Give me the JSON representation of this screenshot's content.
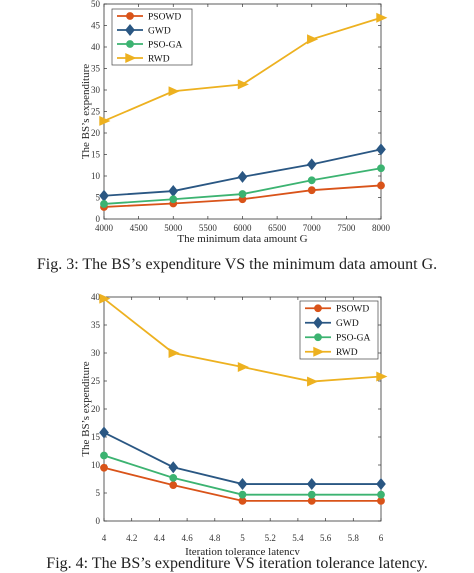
{
  "chart_data": [
    {
      "type": "line",
      "caption": "Fig. 3: The BS’s expenditure VS the minimum data amount G.",
      "xlabel": "The minimum data amount G",
      "ylabel": "The BS’s expenditure",
      "x": [
        4000,
        5000,
        6000,
        7000,
        8000
      ],
      "xticks": [
        "4000",
        "4500",
        "5000",
        "5500",
        "6000",
        "6500",
        "7000",
        "7500",
        "8000"
      ],
      "xlim": [
        4000,
        8000
      ],
      "ylim": [
        0,
        50
      ],
      "yticks": [
        "0",
        "5",
        "10",
        "15",
        "20",
        "25",
        "30",
        "35",
        "40",
        "45",
        "50"
      ],
      "grid": false,
      "legend_position": "top-left",
      "series": [
        {
          "name": "PSOWD",
          "color": "#d95319",
          "marker": "circle",
          "values": [
            2.8,
            3.6,
            4.6,
            6.7,
            7.8
          ]
        },
        {
          "name": "GWD",
          "color": "#2a5783",
          "marker": "diamond",
          "values": [
            5.4,
            6.5,
            9.8,
            12.7,
            16.2
          ]
        },
        {
          "name": "PSO-GA",
          "color": "#3cb371",
          "marker": "circle",
          "values": [
            3.5,
            4.6,
            5.8,
            9.0,
            11.8
          ]
        },
        {
          "name": "RWD",
          "color": "#edb120",
          "marker": "triangle-right",
          "values": [
            22.8,
            29.7,
            31.3,
            41.8,
            46.8
          ]
        }
      ]
    },
    {
      "type": "line",
      "caption": "Fig. 4: The BS’s expenditure VS iteration tolerance latency.",
      "xlabel": "Iteration tolerance latency",
      "ylabel": "The BS’s expenditure",
      "x": [
        4,
        4.5,
        5,
        5.5,
        6
      ],
      "xticks": [
        "4",
        "4.2",
        "4.4",
        "4.6",
        "4.8",
        "5",
        "5.2",
        "5.4",
        "5.6",
        "5.8",
        "6"
      ],
      "xlim": [
        4,
        6
      ],
      "ylim": [
        0,
        40
      ],
      "yticks": [
        "0",
        "5",
        "10",
        "15",
        "20",
        "25",
        "30",
        "35",
        "40"
      ],
      "grid": false,
      "legend_position": "top-right",
      "series": [
        {
          "name": "PSOWD",
          "color": "#d95319",
          "marker": "circle",
          "values": [
            9.5,
            6.4,
            3.6,
            3.6,
            3.6
          ]
        },
        {
          "name": "GWD",
          "color": "#2a5783",
          "marker": "diamond",
          "values": [
            15.8,
            9.6,
            6.6,
            6.6,
            6.6
          ]
        },
        {
          "name": "PSO-GA",
          "color": "#3cb371",
          "marker": "circle",
          "values": [
            11.7,
            7.7,
            4.7,
            4.7,
            4.7
          ]
        },
        {
          "name": "RWD",
          "color": "#edb120",
          "marker": "triangle-right",
          "values": [
            39.7,
            30.0,
            27.5,
            24.9,
            25.8
          ]
        }
      ]
    }
  ]
}
